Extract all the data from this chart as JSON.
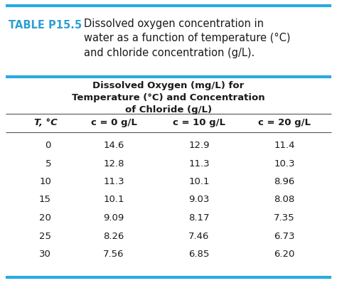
{
  "title_label": "TABLE P15.5",
  "title_text": "Dissolved oxygen concentration in\nwater as a function of temperature (°C)\nand chloride concentration (g/L).",
  "subtitle_line1": "Dissolved Oxygen (mg/L) for",
  "subtitle_line2": "Temperature (°C) and Concentration",
  "subtitle_line3": "of Chloride (g/L)",
  "col_headers": [
    "T, °C",
    "c = 0 g/L",
    "c = 10 g/L",
    "c = 20 g/L"
  ],
  "temperatures": [
    "0",
    "5",
    "10",
    "15",
    "20",
    "25",
    "30"
  ],
  "c0": [
    "14.6",
    "12.8",
    "11.3",
    "10.1",
    "9.09",
    "8.26",
    "7.56"
  ],
  "c10": [
    "12.9",
    "11.3",
    "10.1",
    "9.03",
    "8.17",
    "7.46",
    "6.85"
  ],
  "c20": [
    "11.4",
    "10.3",
    "8.96",
    "8.08",
    "7.35",
    "6.73",
    "6.20"
  ],
  "bg_color": "#ffffff",
  "title_label_color": "#2e9fd4",
  "text_color": "#1a1a1a",
  "thick_line_color": "#29abe2",
  "thin_line_color": "#555555"
}
